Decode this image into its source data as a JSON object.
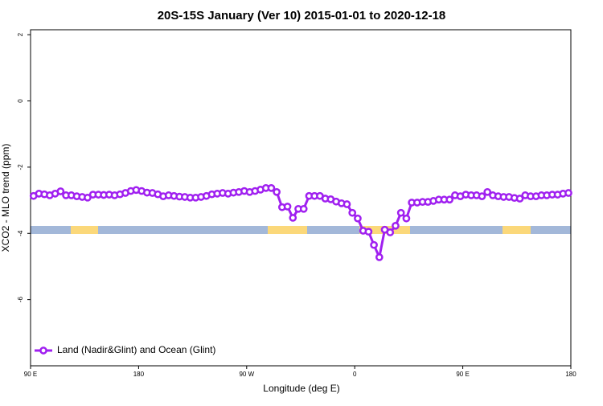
{
  "chart_data": {
    "type": "line",
    "title": "20S-15S January (Ver 10)   2015-01-01 to 2020-12-18",
    "xlabel": "Longitude (deg E)",
    "ylabel": "XCO2 - MLO trend (ppm)",
    "xlim": [
      90,
      540
    ],
    "xticks": [
      {
        "value": 90,
        "label": "90 E"
      },
      180,
      {
        "value": 270,
        "label": "90 W"
      },
      {
        "value": 360,
        "label": "0"
      },
      {
        "value": 450,
        "label": "90 E"
      },
      {
        "value": 540,
        "label": "180"
      }
    ],
    "ylim": [
      -8,
      2.15
    ],
    "yticks": [
      2,
      0,
      -2,
      -4,
      -6
    ],
    "legend": "lower left",
    "series": [
      {
        "name": "Land (Nadir&Glint) and Ocean (Glint)",
        "color": "#a020f0",
        "x": [
          92.5,
          97,
          101.5,
          106,
          110.5,
          115,
          119.5,
          124,
          128.5,
          133,
          137.5,
          142,
          146.5,
          151,
          155.5,
          160,
          164.5,
          169,
          173.5,
          178,
          182.5,
          187,
          191.5,
          196,
          200.5,
          205,
          209.5,
          214,
          218.5,
          223,
          227.5,
          232,
          236.5,
          241,
          245.5,
          250,
          254.5,
          259,
          263.5,
          268,
          272.5,
          277,
          281.5,
          286,
          290.5,
          295,
          299.5,
          304,
          308.5,
          313,
          317.5,
          322,
          326.5,
          331,
          335.5,
          340,
          344.5,
          349,
          353.5,
          358,
          362.5,
          367,
          371.5,
          376,
          380.5,
          385,
          389.5,
          394,
          398.5,
          403,
          407.5,
          412,
          416.5,
          421,
          425.5,
          430,
          434.5,
          439,
          443.5,
          448,
          452.5,
          457,
          461.5,
          466,
          470.5,
          475,
          479.5,
          484,
          488.5,
          493,
          497.5,
          502,
          506.5,
          511,
          515.5,
          520,
          524.5,
          529,
          533.5,
          538
        ],
        "values": [
          -2.87,
          -2.8,
          -2.82,
          -2.85,
          -2.8,
          -2.73,
          -2.85,
          -2.85,
          -2.88,
          -2.9,
          -2.92,
          -2.83,
          -2.83,
          -2.84,
          -2.83,
          -2.85,
          -2.82,
          -2.78,
          -2.72,
          -2.69,
          -2.72,
          -2.77,
          -2.78,
          -2.82,
          -2.88,
          -2.85,
          -2.87,
          -2.89,
          -2.9,
          -2.92,
          -2.92,
          -2.9,
          -2.87,
          -2.82,
          -2.8,
          -2.78,
          -2.8,
          -2.77,
          -2.75,
          -2.72,
          -2.75,
          -2.72,
          -2.68,
          -2.63,
          -2.63,
          -2.75,
          -3.21,
          -3.19,
          -3.53,
          -3.26,
          -3.26,
          -2.87,
          -2.87,
          -2.87,
          -2.95,
          -2.97,
          -3.04,
          -3.09,
          -3.12,
          -3.38,
          -3.55,
          -3.92,
          -3.95,
          -4.35,
          -4.72,
          -3.89,
          -3.97,
          -3.77,
          -3.38,
          -3.55,
          -3.07,
          -3.07,
          -3.05,
          -3.05,
          -3.02,
          -2.98,
          -2.98,
          -2.98,
          -2.85,
          -2.88,
          -2.83,
          -2.85,
          -2.85,
          -2.88,
          -2.75,
          -2.85,
          -2.88,
          -2.9,
          -2.9,
          -2.93,
          -2.95,
          -2.85,
          -2.88,
          -2.88,
          -2.85,
          -2.85,
          -2.83,
          -2.83,
          -2.8,
          -2.78
        ]
      }
    ]
  }
}
